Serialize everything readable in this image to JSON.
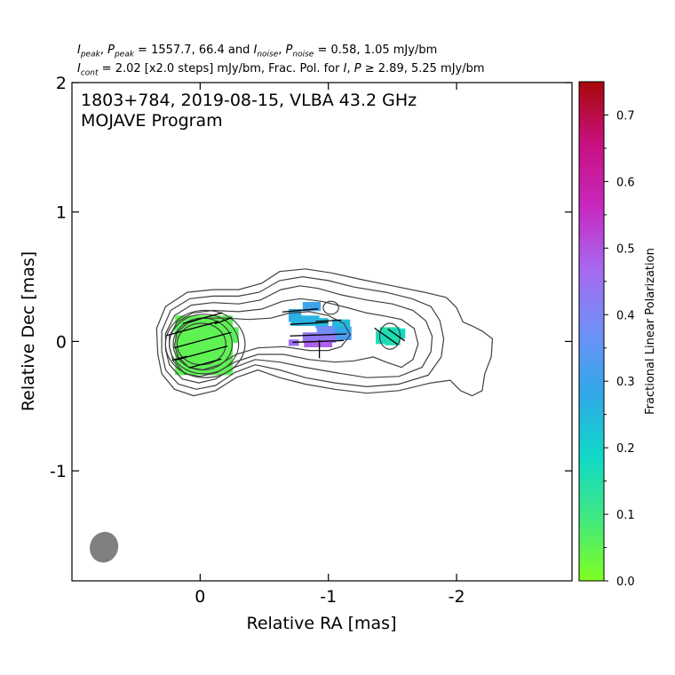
{
  "header": {
    "line1": {
      "i_label": "I",
      "i_sub": "peak",
      "p_label": "P",
      "p_sub": "peak",
      "values": " = 1557.7, 66.4 and ",
      "i2_label": "I",
      "i2_sub": "noise",
      "p2_label": "P",
      "p2_sub": "noise",
      "values2": " = 0.58, 1.05 mJy/bm"
    },
    "line2": {
      "i_label": "I",
      "i_sub": "cont",
      "text1": " = 2.02 [x2.0 steps] mJy/bm, Frac. Pol. for ",
      "i2_label": "I",
      "p_label": "P",
      "text2": " ≥  2.89, 5.25 mJy/bm"
    }
  },
  "chart_data": {
    "type": "heatmap",
    "title": "1803+784, 2019-08-15, VLBA 43.2 GHz",
    "subtitle": "MOJAVE Program",
    "xlabel": "Relative RA [mas]",
    "ylabel": "Relative Dec [mas]",
    "xlim": [
      1.0,
      -2.9
    ],
    "ylim": [
      -1.85,
      2.0
    ],
    "x_ticks": [
      {
        "v": 0,
        "label": "0"
      },
      {
        "v": -1,
        "label": "-1"
      },
      {
        "v": -2,
        "label": "-2"
      }
    ],
    "y_ticks": [
      {
        "v": -1,
        "label": "-1"
      },
      {
        "v": 0,
        "label": "0"
      },
      {
        "v": 1,
        "label": "1"
      },
      {
        "v": 2,
        "label": "2"
      }
    ],
    "colorbar": {
      "label": "Fractional Linear Polarization",
      "range": [
        0.0,
        0.75
      ],
      "ticks": [
        {
          "v": 0.0,
          "label": "0.0"
        },
        {
          "v": 0.1,
          "label": "0.1"
        },
        {
          "v": 0.2,
          "label": "0.2"
        },
        {
          "v": 0.3,
          "label": "0.3"
        },
        {
          "v": 0.4,
          "label": "0.4"
        },
        {
          "v": 0.5,
          "label": "0.5"
        },
        {
          "v": 0.6,
          "label": "0.6"
        },
        {
          "v": 0.7,
          "label": "0.7"
        }
      ],
      "colors": [
        "#80ff20",
        "#40e880",
        "#10d8c8",
        "#30a8e8",
        "#7090f8",
        "#a868f0",
        "#c828c0",
        "#c81080",
        "#a80808"
      ]
    },
    "core_contours": [
      {
        "cx": -0.01,
        "cy": -0.02,
        "rx": 0.19,
        "ry": 0.16
      },
      {
        "cx": -0.02,
        "cy": -0.02,
        "rx": 0.23,
        "ry": 0.2
      },
      {
        "cx": -0.03,
        "cy": -0.02,
        "rx": 0.27,
        "ry": 0.23
      },
      {
        "cx": -0.04,
        "cy": -0.02,
        "rx": 0.31,
        "ry": 0.26
      }
    ],
    "contours": [
      [
        [
          0.33,
          -0.1
        ],
        [
          0.3,
          -0.25
        ],
        [
          0.2,
          -0.37
        ],
        [
          0.05,
          -0.42
        ],
        [
          -0.12,
          -0.38
        ],
        [
          -0.28,
          -0.28
        ],
        [
          -0.45,
          -0.22
        ],
        [
          -0.62,
          -0.28
        ],
        [
          -0.82,
          -0.33
        ],
        [
          -1.05,
          -0.37
        ],
        [
          -1.3,
          -0.4
        ],
        [
          -1.55,
          -0.38
        ],
        [
          -1.8,
          -0.32
        ],
        [
          -1.95,
          -0.3
        ],
        [
          -2.03,
          -0.38
        ],
        [
          -2.12,
          -0.42
        ],
        [
          -2.2,
          -0.38
        ],
        [
          -2.22,
          -0.25
        ],
        [
          -2.27,
          -0.12
        ],
        [
          -2.28,
          0.02
        ],
        [
          -2.2,
          0.08
        ],
        [
          -2.12,
          0.12
        ],
        [
          -2.05,
          0.15
        ],
        [
          -2.0,
          0.26
        ],
        [
          -1.92,
          0.34
        ],
        [
          -1.75,
          0.38
        ],
        [
          -1.5,
          0.43
        ],
        [
          -1.25,
          0.48
        ],
        [
          -1.02,
          0.53
        ],
        [
          -0.82,
          0.56
        ],
        [
          -0.62,
          0.54
        ],
        [
          -0.48,
          0.45
        ],
        [
          -0.3,
          0.4
        ],
        [
          -0.1,
          0.4
        ],
        [
          0.1,
          0.38
        ],
        [
          0.27,
          0.27
        ],
        [
          0.34,
          0.1
        ],
        [
          0.33,
          -0.1
        ]
      ],
      [
        [
          0.3,
          -0.08
        ],
        [
          0.27,
          -0.22
        ],
        [
          0.17,
          -0.33
        ],
        [
          0.03,
          -0.37
        ],
        [
          -0.12,
          -0.34
        ],
        [
          -0.27,
          -0.24
        ],
        [
          -0.43,
          -0.18
        ],
        [
          -0.62,
          -0.22
        ],
        [
          -0.82,
          -0.28
        ],
        [
          -1.05,
          -0.32
        ],
        [
          -1.3,
          -0.35
        ],
        [
          -1.55,
          -0.33
        ],
        [
          -1.78,
          -0.26
        ],
        [
          -1.88,
          -0.12
        ],
        [
          -1.9,
          0.02
        ],
        [
          -1.87,
          0.16
        ],
        [
          -1.8,
          0.27
        ],
        [
          -1.65,
          0.33
        ],
        [
          -1.45,
          0.38
        ],
        [
          -1.2,
          0.42
        ],
        [
          -1.0,
          0.47
        ],
        [
          -0.8,
          0.5
        ],
        [
          -0.62,
          0.47
        ],
        [
          -0.46,
          0.38
        ],
        [
          -0.3,
          0.35
        ],
        [
          -0.1,
          0.35
        ],
        [
          0.08,
          0.33
        ],
        [
          0.23,
          0.24
        ],
        [
          0.3,
          0.08
        ],
        [
          0.3,
          -0.08
        ]
      ],
      [
        [
          0.27,
          -0.06
        ],
        [
          0.24,
          -0.18
        ],
        [
          0.14,
          -0.29
        ],
        [
          0.01,
          -0.32
        ],
        [
          -0.12,
          -0.29
        ],
        [
          -0.27,
          -0.2
        ],
        [
          -0.43,
          -0.14
        ],
        [
          -0.62,
          -0.16
        ],
        [
          -0.82,
          -0.2
        ],
        [
          -1.05,
          -0.24
        ],
        [
          -1.3,
          -0.28
        ],
        [
          -1.55,
          -0.27
        ],
        [
          -1.73,
          -0.2
        ],
        [
          -1.8,
          -0.08
        ],
        [
          -1.81,
          0.04
        ],
        [
          -1.76,
          0.16
        ],
        [
          -1.66,
          0.24
        ],
        [
          -1.5,
          0.29
        ],
        [
          -1.3,
          0.32
        ],
        [
          -1.1,
          0.36
        ],
        [
          -0.92,
          0.41
        ],
        [
          -0.78,
          0.43
        ],
        [
          -0.63,
          0.4
        ],
        [
          -0.47,
          0.32
        ],
        [
          -0.3,
          0.29
        ],
        [
          -0.1,
          0.3
        ],
        [
          0.07,
          0.28
        ],
        [
          0.2,
          0.2
        ],
        [
          0.27,
          0.06
        ],
        [
          0.27,
          -0.06
        ]
      ],
      [
        [
          0.24,
          -0.04
        ],
        [
          0.21,
          -0.15
        ],
        [
          0.12,
          -0.25
        ],
        [
          0.0,
          -0.27
        ],
        [
          -0.13,
          -0.24
        ],
        [
          -0.27,
          -0.16
        ],
        [
          -0.45,
          -0.1
        ],
        [
          -0.65,
          -0.1
        ],
        [
          -0.85,
          -0.14
        ],
        [
          -1.05,
          -0.16
        ],
        [
          -1.2,
          -0.15
        ],
        [
          -1.35,
          -0.12
        ],
        [
          -1.45,
          -0.16
        ],
        [
          -1.57,
          -0.2
        ],
        [
          -1.66,
          -0.14
        ],
        [
          -1.7,
          -0.02
        ],
        [
          -1.67,
          0.1
        ],
        [
          -1.57,
          0.17
        ],
        [
          -1.42,
          0.2
        ],
        [
          -1.3,
          0.22
        ],
        [
          -1.15,
          0.26
        ],
        [
          -0.95,
          0.31
        ],
        [
          -0.78,
          0.33
        ],
        [
          -0.64,
          0.31
        ],
        [
          -0.48,
          0.25
        ],
        [
          -0.3,
          0.23
        ],
        [
          -0.1,
          0.24
        ],
        [
          0.06,
          0.22
        ],
        [
          0.18,
          0.15
        ],
        [
          0.24,
          0.04
        ],
        [
          0.24,
          -0.04
        ]
      ],
      [
        [
          0.2,
          -0.03
        ],
        [
          0.17,
          -0.12
        ],
        [
          0.09,
          -0.2
        ],
        [
          -0.02,
          -0.22
        ],
        [
          -0.15,
          -0.18
        ],
        [
          -0.28,
          -0.1
        ],
        [
          -0.45,
          -0.05
        ],
        [
          -0.65,
          -0.04
        ],
        [
          -0.85,
          -0.07
        ],
        [
          -1.0,
          -0.07
        ],
        [
          -1.1,
          -0.04
        ],
        [
          -1.17,
          0.05
        ],
        [
          -1.12,
          0.14
        ],
        [
          -1.0,
          0.2
        ],
        [
          -0.85,
          0.23
        ],
        [
          -0.7,
          0.22
        ],
        [
          -0.55,
          0.18
        ],
        [
          -0.38,
          0.17
        ],
        [
          -0.2,
          0.18
        ],
        [
          -0.02,
          0.18
        ],
        [
          0.1,
          0.14
        ],
        [
          0.18,
          0.07
        ],
        [
          0.2,
          -0.03
        ]
      ]
    ],
    "small_contours": [
      {
        "cx": -1.48,
        "cy": 0.04,
        "rx": 0.08,
        "ry": 0.1
      },
      {
        "cx": -1.02,
        "cy": 0.26,
        "rx": 0.06,
        "ry": 0.05
      }
    ],
    "pol_pixels": [
      {
        "x": -0.03,
        "y": -0.03,
        "w": 0.45,
        "h": 0.46,
        "frac": 0.05
      },
      {
        "x": 0.15,
        "y": 0.08,
        "w": 0.1,
        "h": 0.1,
        "frac": 0.06
      },
      {
        "x": -0.25,
        "y": 0.05,
        "w": 0.1,
        "h": 0.12,
        "frac": 0.06
      },
      {
        "x": -0.74,
        "y": 0.2,
        "w": 0.1,
        "h": 0.1,
        "frac": 0.28
      },
      {
        "x": -0.82,
        "y": 0.16,
        "w": 0.22,
        "h": 0.08,
        "frac": 0.26
      },
      {
        "x": -0.87,
        "y": 0.27,
        "w": 0.14,
        "h": 0.07,
        "frac": 0.3
      },
      {
        "x": -0.95,
        "y": 0.14,
        "w": 0.1,
        "h": 0.08,
        "frac": 0.24
      },
      {
        "x": -1.08,
        "y": 0.08,
        "w": 0.2,
        "h": 0.07,
        "frac": 0.28
      },
      {
        "x": -1.1,
        "y": 0.14,
        "w": 0.14,
        "h": 0.06,
        "frac": 0.25
      },
      {
        "x": -0.93,
        "y": 0.03,
        "w": 0.26,
        "h": 0.08,
        "frac": 0.43
      },
      {
        "x": -0.98,
        "y": 0.09,
        "w": 0.14,
        "h": 0.06,
        "frac": 0.38
      },
      {
        "x": -1.12,
        "y": 0.04,
        "w": 0.12,
        "h": 0.06,
        "frac": 0.32
      },
      {
        "x": -0.92,
        "y": -0.02,
        "w": 0.22,
        "h": 0.05,
        "frac": 0.48
      },
      {
        "x": -0.73,
        "y": -0.01,
        "w": 0.08,
        "h": 0.05,
        "frac": 0.45
      },
      {
        "x": -1.48,
        "y": 0.05,
        "w": 0.16,
        "h": 0.12,
        "frac": 0.15
      },
      {
        "x": -1.42,
        "y": 0.03,
        "w": 0.1,
        "h": 0.1,
        "frac": 0.17
      },
      {
        "x": -1.55,
        "y": 0.06,
        "w": 0.1,
        "h": 0.08,
        "frac": 0.18
      },
      {
        "x": -1.5,
        "y": 0.02,
        "w": 0.12,
        "h": 0.1,
        "frac": 0.16
      }
    ],
    "evpa_ticks": [
      {
        "x": -0.02,
        "y": 0.18,
        "len": 0.32,
        "ang": 15
      },
      {
        "x": 0.06,
        "y": 0.1,
        "len": 0.42,
        "ang": 15
      },
      {
        "x": -0.02,
        "y": 0.01,
        "len": 0.46,
        "ang": 15
      },
      {
        "x": -0.01,
        "y": -0.09,
        "len": 0.42,
        "ang": 15
      },
      {
        "x": -0.04,
        "y": -0.17,
        "len": 0.26,
        "ang": 15
      },
      {
        "x": -0.18,
        "y": 0.16,
        "len": 0.14,
        "ang": 20
      },
      {
        "x": 0.16,
        "y": -0.13,
        "len": 0.12,
        "ang": 15
      },
      {
        "x": -0.78,
        "y": 0.24,
        "len": 0.28,
        "ang": 5
      },
      {
        "x": -0.85,
        "y": 0.14,
        "len": 0.3,
        "ang": 3
      },
      {
        "x": -1.0,
        "y": 0.16,
        "len": 0.2,
        "ang": 3
      },
      {
        "x": -0.92,
        "y": 0.05,
        "len": 0.44,
        "ang": 2
      },
      {
        "x": -0.92,
        "y": 0.0,
        "len": 0.4,
        "ang": 2
      },
      {
        "x": -0.93,
        "y": -0.06,
        "len": 0.14,
        "ang": 90
      },
      {
        "x": -1.45,
        "y": 0.04,
        "len": 0.22,
        "ang": -35
      },
      {
        "x": -1.53,
        "y": 0.05,
        "len": 0.16,
        "ang": -35
      }
    ],
    "beam": {
      "cx": 0.75,
      "cy": -1.59,
      "rx": 0.11,
      "ry": 0.12,
      "ang": 20
    }
  }
}
